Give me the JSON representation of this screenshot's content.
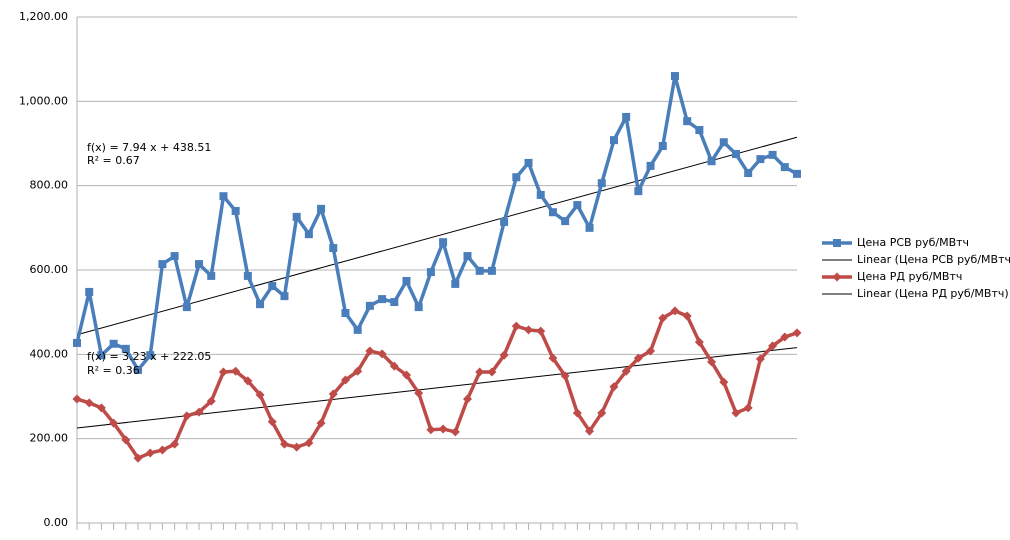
{
  "chart_data": {
    "type": "line",
    "categories": [
      null,
      null,
      null,
      null,
      null,
      null,
      null,
      null,
      null,
      null,
      null,
      null,
      null,
      null,
      null,
      null,
      null,
      null,
      null,
      null,
      null,
      null,
      null,
      null,
      null,
      null,
      null,
      null,
      null,
      null,
      null,
      null,
      null,
      null,
      null,
      null,
      null,
      null,
      null,
      null,
      null,
      null,
      null,
      null,
      null,
      null,
      null,
      null,
      null,
      null,
      null,
      null,
      null,
      null,
      null,
      null,
      null,
      null,
      null,
      null
    ],
    "series": [
      {
        "name": "Цена РСВ руб/МВтч",
        "color": "#4a7ebb",
        "marker": "square",
        "values": [
          427,
          548,
          398,
          425,
          413,
          363,
          398,
          614,
          633,
          512,
          614,
          586,
          775,
          740,
          586,
          519,
          562,
          538,
          726,
          685,
          745,
          652,
          498,
          458,
          515,
          531,
          524,
          574,
          512,
          595,
          666,
          567,
          633,
          598,
          598,
          714,
          820,
          854,
          778,
          737,
          716,
          754,
          700,
          806,
          908,
          963,
          787,
          847,
          894,
          1060,
          953,
          932,
          858,
          903,
          875,
          830,
          863,
          873,
          844,
          828
        ]
      },
      {
        "name": "Цена РД руб/МВтч",
        "color": "#be4b48",
        "marker": "diamond",
        "values": [
          294,
          285,
          273,
          237,
          197,
          154,
          166,
          173,
          187,
          254,
          263,
          289,
          358,
          360,
          337,
          304,
          240,
          187,
          180,
          190,
          237,
          306,
          339,
          360,
          408,
          401,
          372,
          351,
          308,
          221,
          223,
          216,
          294,
          358,
          358,
          398,
          467,
          458,
          455,
          391,
          349,
          261,
          218,
          261,
          323,
          360,
          391,
          408,
          486,
          503,
          491,
          429,
          382,
          334,
          261,
          273,
          389,
          420,
          441,
          451
        ]
      }
    ],
    "trendlines": [
      {
        "name": "Linear (Цена РСВ руб/МВтч)",
        "color": "#000000",
        "equation": "f(x) = 7.94 x + 438.51",
        "r2": "R² = 0.67",
        "slope": 7.94,
        "intercept": 438.51
      },
      {
        "name": "Linear (Цена РД руб/МВтч)",
        "color": "#000000",
        "equation": "f(x) = 3.23 x + 222.05",
        "r2": "R² = 0.36",
        "slope": 3.23,
        "intercept": 222.05
      }
    ],
    "ylim": [
      0,
      1200
    ],
    "yticks": [
      {
        "value": 0,
        "label": "0.00"
      },
      {
        "value": 200,
        "label": "200.00"
      },
      {
        "value": 400,
        "label": "400.00"
      },
      {
        "value": 600,
        "label": "600.00"
      },
      {
        "value": 800,
        "label": "800.00"
      },
      {
        "value": 1000,
        "label": "1,000.00"
      },
      {
        "value": 1200,
        "label": "1,200.00"
      }
    ],
    "grid": true,
    "legend": "right"
  }
}
